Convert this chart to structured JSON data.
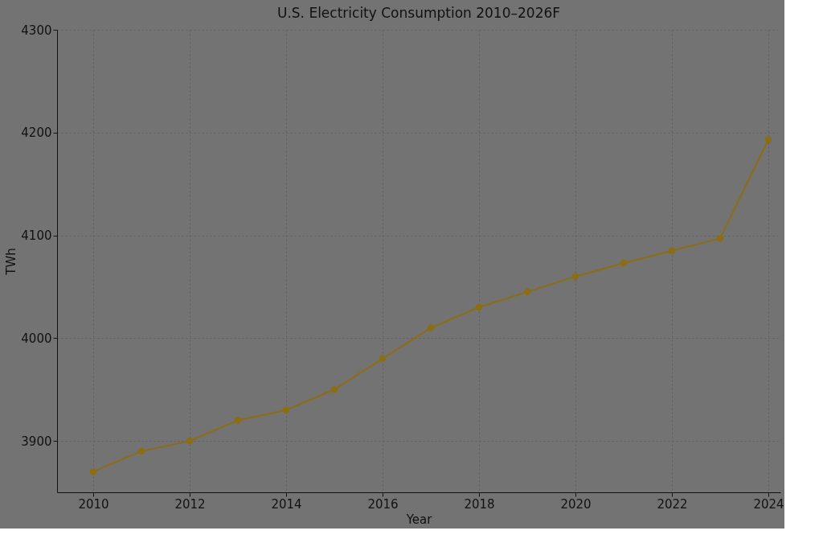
{
  "chart_data": {
    "type": "line",
    "title": "U.S. Electricity Consumption 2010–2026F",
    "xlabel": "Year",
    "ylabel": "TWh",
    "x": [
      2010,
      2011,
      2012,
      2013,
      2014,
      2015,
      2016,
      2017,
      2018,
      2019,
      2020,
      2021,
      2022,
      2023,
      2024
    ],
    "series": [
      {
        "color": "#8c6d12",
        "values": [
          3870,
          3890,
          3900,
          3920,
          3930,
          3950,
          3980,
          4010,
          4030,
          4045,
          4060,
          4073,
          4085,
          4097,
          4193
        ]
      }
    ],
    "xlim": [
      2009.25,
      2024.25
    ],
    "xticks": [
      2010,
      2012,
      2014,
      2016,
      2018,
      2020,
      2022,
      2024
    ],
    "ylim": [
      3850,
      4300
    ],
    "yticks": [
      3900,
      4000,
      4100,
      4200,
      4300
    ],
    "grid": true,
    "marker": "circle",
    "line_style": "solid",
    "legend": false
  }
}
